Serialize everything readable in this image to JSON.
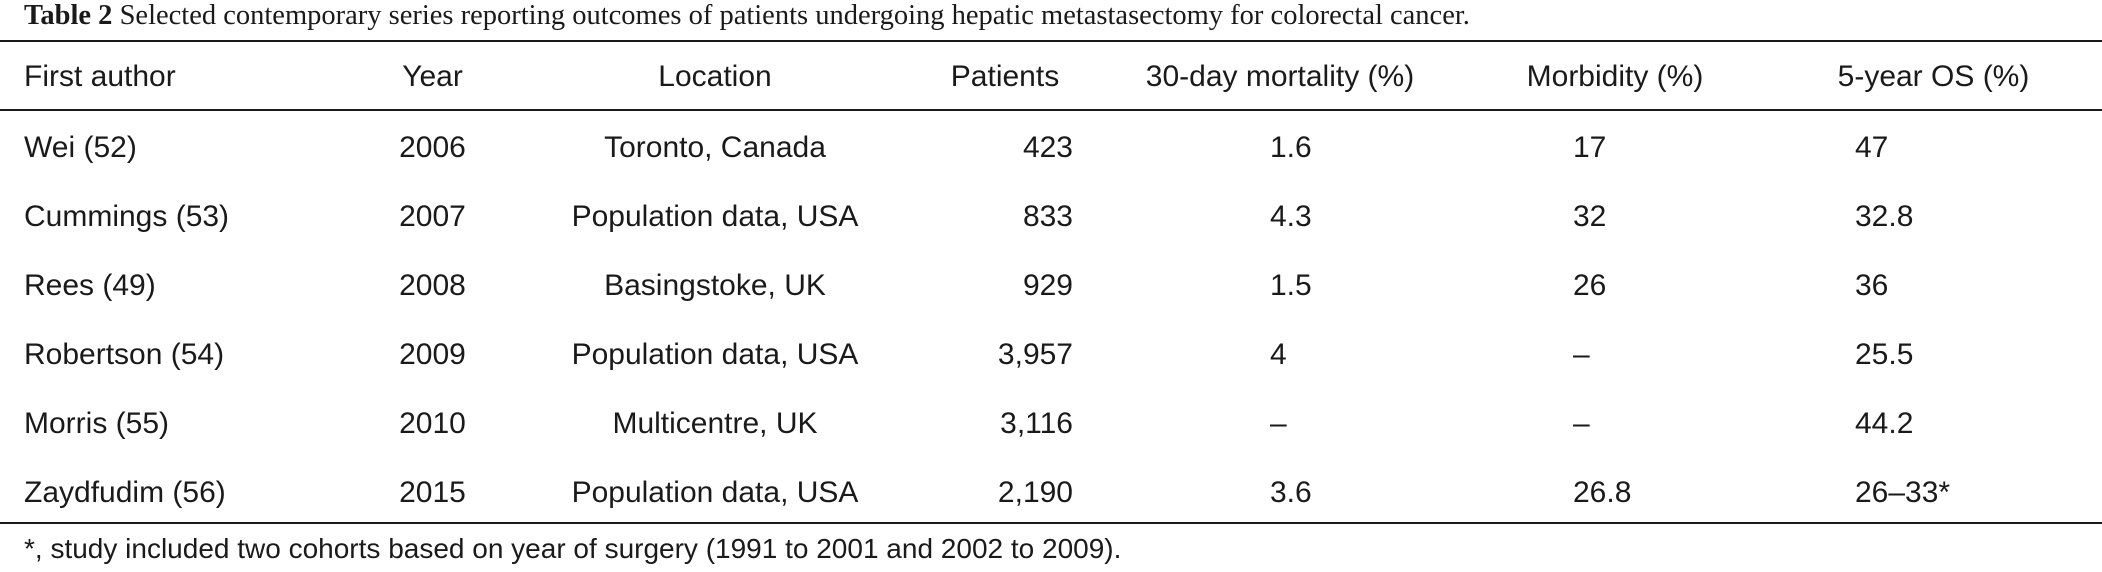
{
  "caption": {
    "label": "Table 2",
    "text": " Selected contemporary series reporting outcomes of patients undergoing hepatic metastasectomy for colorectal cancer."
  },
  "table": {
    "headers": [
      "First author",
      "Year",
      "Location",
      "Patients",
      "30-day mortality (%)",
      "Morbidity (%)",
      "5-year OS (%)"
    ],
    "rows": [
      [
        "Wei (52)",
        "2006",
        "Toronto, Canada",
        "423",
        "1.6",
        "17",
        "47"
      ],
      [
        "Cummings (53)",
        "2007",
        "Population data, USA",
        "833",
        "4.3",
        "32",
        "32.8"
      ],
      [
        "Rees (49)",
        "2008",
        "Basingstoke, UK",
        "929",
        "1.5",
        "26",
        "36"
      ],
      [
        "Robertson (54)",
        "2009",
        "Population data, USA",
        "3,957",
        "4",
        "–",
        "25.5"
      ],
      [
        "Morris (55)",
        "2010",
        "Multicentre, UK",
        "3,116",
        "–",
        "–",
        "44.2"
      ],
      [
        "Zaydfudim (56)",
        "2015",
        "Population data, USA",
        "2,190",
        "3.6",
        "26.8",
        "26–33*"
      ]
    ]
  },
  "footnote": "*, study included two cohorts based on year of surgery (1991 to 2001 and 2002 to 2009)."
}
